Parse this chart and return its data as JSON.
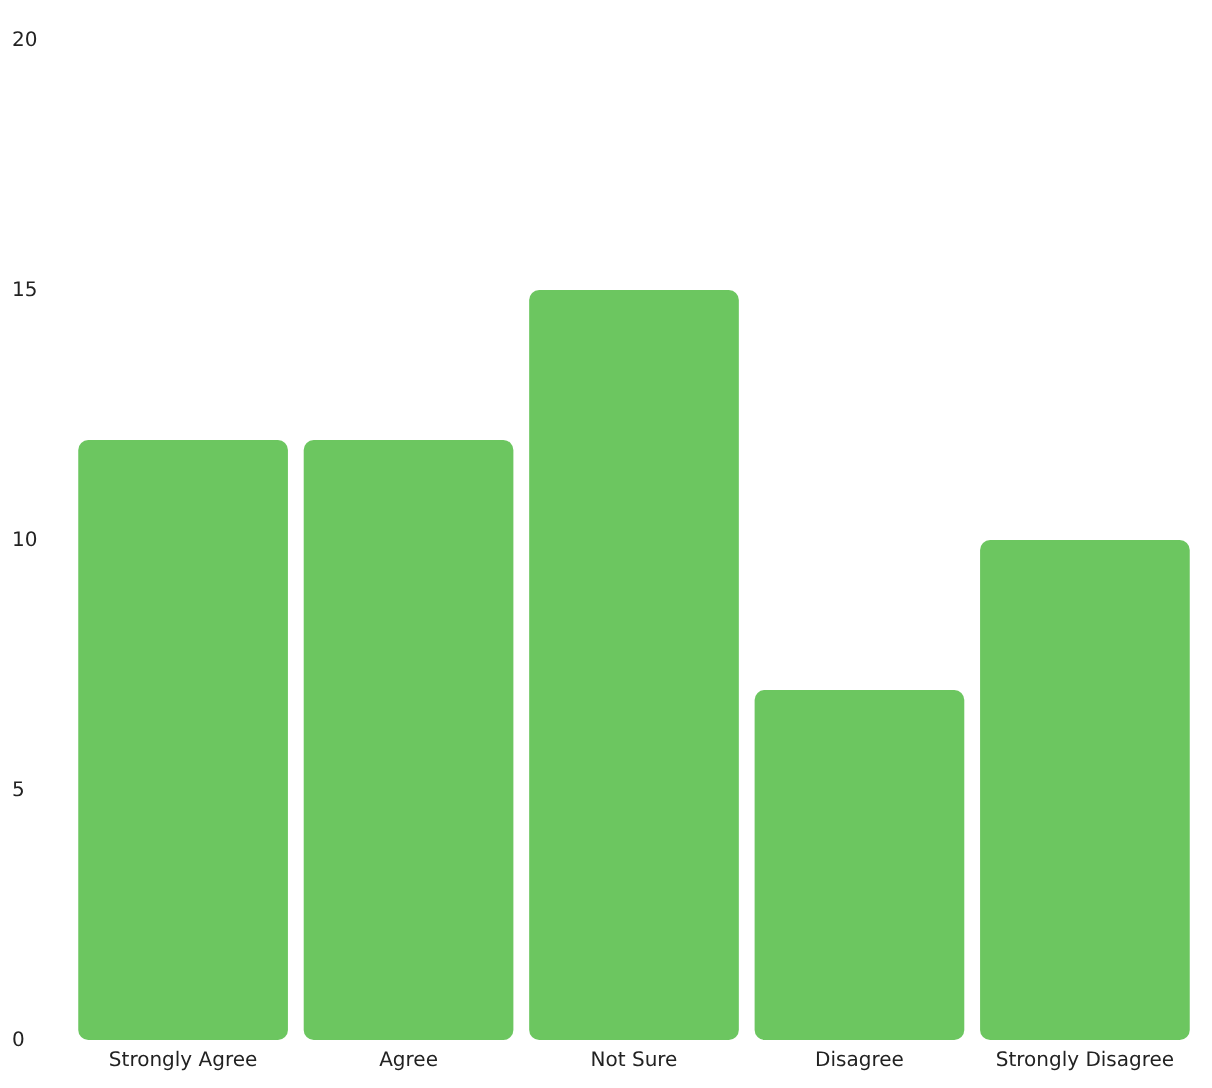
{
  "chart_data": {
    "type": "bar",
    "categories": [
      "Strongly Agree",
      "Agree",
      "Not Sure",
      "Disagree",
      "Strongly Disagree"
    ],
    "values": [
      12,
      12,
      15,
      7,
      10
    ],
    "color": "#6cc660",
    "ylim": [
      0,
      20
    ],
    "yticks": [
      0,
      5,
      10,
      15,
      20
    ]
  }
}
